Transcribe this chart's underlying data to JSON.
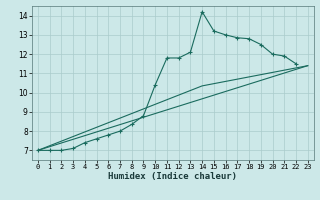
{
  "xlabel": "Humidex (Indice chaleur)",
  "background_color": "#cce8e8",
  "grid_color": "#aacccc",
  "line_color": "#1a6b5e",
  "xlim": [
    -0.5,
    23.5
  ],
  "ylim": [
    6.5,
    14.5
  ],
  "xticks": [
    0,
    1,
    2,
    3,
    4,
    5,
    6,
    7,
    8,
    9,
    10,
    11,
    12,
    13,
    14,
    15,
    16,
    17,
    18,
    19,
    20,
    21,
    22,
    23
  ],
  "yticks": [
    7,
    8,
    9,
    10,
    11,
    12,
    13,
    14
  ],
  "series0_x": [
    0,
    1,
    2,
    3,
    4,
    5,
    6,
    7,
    8,
    9,
    10,
    11,
    12,
    13,
    14,
    15,
    16,
    17,
    18,
    19,
    20,
    21,
    22
  ],
  "series0_y": [
    7.0,
    7.0,
    7.0,
    7.1,
    7.4,
    7.6,
    7.8,
    8.0,
    8.35,
    8.8,
    10.4,
    11.8,
    11.8,
    12.1,
    14.2,
    13.2,
    13.0,
    12.85,
    12.8,
    12.5,
    12.0,
    11.9,
    11.5
  ],
  "series1_x": [
    0,
    23
  ],
  "series1_y": [
    7.0,
    11.4
  ],
  "series2_x": [
    0,
    14,
    23
  ],
  "series2_y": [
    7.0,
    10.35,
    11.4
  ]
}
